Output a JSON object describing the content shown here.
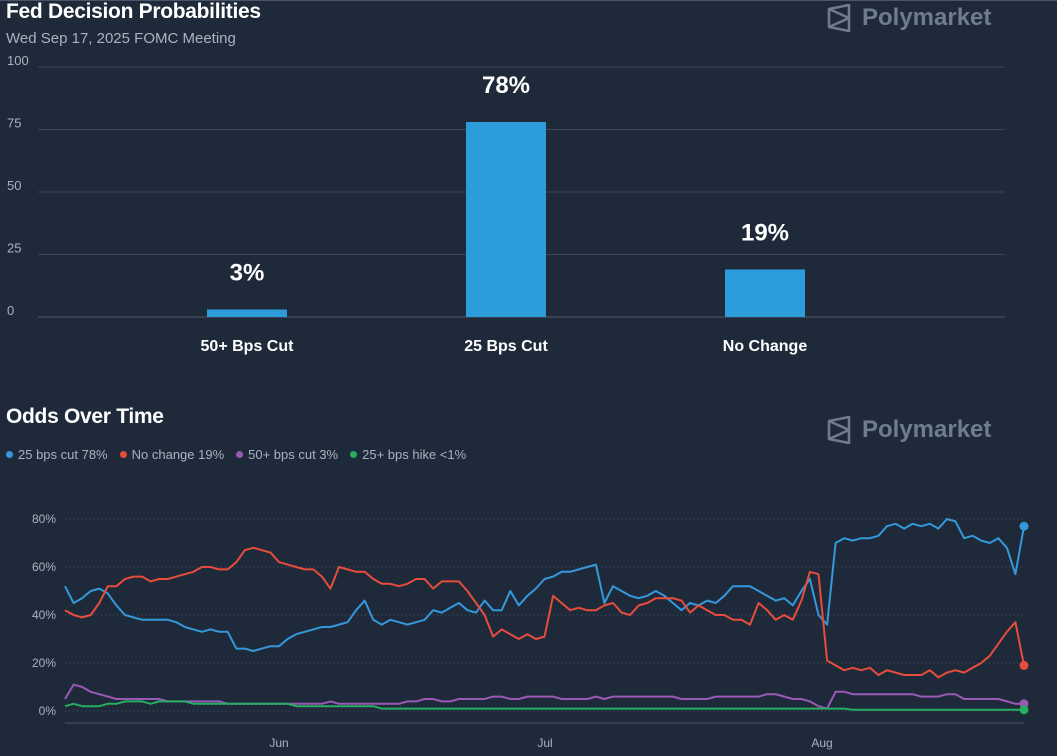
{
  "header": {
    "title": "Fed Decision Probabilities",
    "subtitle": "Wed Sep 17, 2025 FOMC Meeting",
    "brand": "Polymarket"
  },
  "odds": {
    "title": "Odds Over Time",
    "brand": "Polymarket"
  },
  "colors": {
    "bar": "#2d9cdb",
    "series_25cut": "#3498db",
    "series_nochange": "#e74c3c",
    "series_50cut": "#9b59b6",
    "series_hike": "#27ae60"
  },
  "chart_data": [
    {
      "type": "bar",
      "title": "Fed Decision Probabilities",
      "subtitle": "Wed Sep 17, 2025 FOMC Meeting",
      "categories": [
        "50+ Bps Cut",
        "25 Bps Cut",
        "No Change"
      ],
      "values": [
        3,
        78,
        19
      ],
      "data_labels": [
        "3%",
        "78%",
        "19%"
      ],
      "yticks": [
        "0",
        "25",
        "50",
        "75",
        "100"
      ],
      "ylim": [
        0,
        100
      ],
      "grid": true
    },
    {
      "type": "line",
      "title": "Odds Over Time",
      "xticks": [
        "Jun",
        "Jul",
        "Aug"
      ],
      "yticks": [
        "0%",
        "20%",
        "40%",
        "60%",
        "80%"
      ],
      "ylim": [
        0,
        80
      ],
      "legend_position": "top-left",
      "series": [
        {
          "name": "25 bps cut 78%",
          "color": "#3498db",
          "values": [
            52,
            45,
            47,
            50,
            51,
            49,
            44,
            40,
            39,
            38,
            38,
            38,
            38,
            37,
            35,
            34,
            33,
            34,
            33,
            33,
            26,
            26,
            25,
            26,
            27,
            27,
            30,
            32,
            33,
            34,
            35,
            35,
            36,
            37,
            42,
            46,
            38,
            36,
            38,
            37,
            36,
            37,
            38,
            42,
            41,
            43,
            45,
            42,
            41,
            46,
            42,
            42,
            50,
            44,
            48,
            51,
            55,
            56,
            58,
            58,
            59,
            60,
            61,
            45,
            52,
            50,
            48,
            47,
            48,
            50,
            48,
            45,
            42,
            45,
            44,
            46,
            45,
            48,
            52,
            52,
            52,
            50,
            48,
            46,
            47,
            44,
            50,
            55,
            40,
            36,
            70,
            72,
            71,
            72,
            72,
            73,
            77,
            78,
            76,
            78,
            77,
            78,
            76,
            80,
            79,
            72,
            73,
            71,
            70,
            72,
            68,
            57,
            77
          ]
        },
        {
          "name": "No change 19%",
          "color": "#e74c3c",
          "values": [
            42,
            40,
            39,
            40,
            45,
            52,
            52,
            55,
            56,
            56,
            54,
            55,
            55,
            56,
            57,
            58,
            60,
            60,
            59,
            59,
            62,
            67,
            68,
            67,
            66,
            62,
            61,
            60,
            59,
            59,
            56,
            51,
            60,
            59,
            58,
            58,
            55,
            53,
            53,
            52,
            53,
            55,
            55,
            51,
            54,
            54,
            54,
            50,
            45,
            40,
            31,
            34,
            32,
            30,
            32,
            30,
            31,
            48,
            45,
            42,
            43,
            42,
            42,
            44,
            45,
            41,
            40,
            44,
            45,
            47,
            47,
            47,
            46,
            41,
            44,
            42,
            40,
            40,
            38,
            38,
            36,
            45,
            42,
            38,
            40,
            38,
            46,
            58,
            57,
            21,
            19,
            17,
            18,
            17,
            18,
            15,
            17,
            16,
            15,
            15,
            15,
            17,
            14,
            16,
            17,
            16,
            18,
            20,
            23,
            28,
            33,
            37,
            19
          ]
        },
        {
          "name": "50+ bps cut 3%",
          "color": "#9b59b6",
          "values": [
            5,
            11,
            10,
            8,
            7,
            6,
            5,
            5,
            5,
            5,
            5,
            5,
            4,
            4,
            4,
            4,
            4,
            4,
            4,
            3,
            3,
            3,
            3,
            3,
            3,
            3,
            3,
            3,
            3,
            3,
            3,
            4,
            3,
            3,
            3,
            3,
            3,
            3,
            3,
            3,
            4,
            4,
            5,
            5,
            4,
            4,
            5,
            5,
            5,
            5,
            6,
            6,
            5,
            5,
            6,
            6,
            6,
            6,
            5,
            5,
            5,
            5,
            6,
            5,
            6,
            6,
            6,
            6,
            6,
            6,
            6,
            6,
            5,
            5,
            5,
            5,
            6,
            6,
            6,
            6,
            6,
            6,
            7,
            7,
            6,
            5,
            5,
            4,
            2,
            1,
            8,
            8,
            7,
            7,
            7,
            7,
            7,
            7,
            7,
            7,
            6,
            6,
            6,
            7,
            7,
            5,
            5,
            5,
            5,
            5,
            4,
            3,
            3
          ]
        },
        {
          "name": "25+ bps hike <1%",
          "color": "#27ae60",
          "values": [
            2,
            3,
            2,
            2,
            2,
            3,
            3,
            4,
            4,
            4,
            3,
            4,
            4,
            4,
            4,
            3,
            3,
            3,
            3,
            3,
            3,
            3,
            3,
            3,
            3,
            3,
            3,
            2,
            2,
            2,
            2,
            2,
            2,
            2,
            2,
            2,
            2,
            1,
            1,
            1,
            1,
            1,
            1,
            1,
            1,
            1,
            1,
            1,
            1,
            1,
            1,
            1,
            1,
            1,
            1,
            1,
            1,
            1,
            1,
            1,
            1,
            1,
            1,
            1,
            1,
            1,
            1,
            1,
            1,
            1,
            1,
            1,
            1,
            1,
            1,
            1,
            1,
            1,
            1,
            1,
            1,
            1,
            1,
            1,
            1,
            1,
            1,
            1,
            1,
            1,
            1,
            1,
            0.5,
            0.5,
            0.5,
            0.5,
            0.5,
            0.5,
            0.5,
            0.5,
            0.5,
            0.5,
            0.5,
            0.5,
            0.5,
            0.5,
            0.5,
            0.5,
            0.5,
            0.5,
            0.5,
            0.5,
            0.5
          ]
        }
      ]
    }
  ]
}
